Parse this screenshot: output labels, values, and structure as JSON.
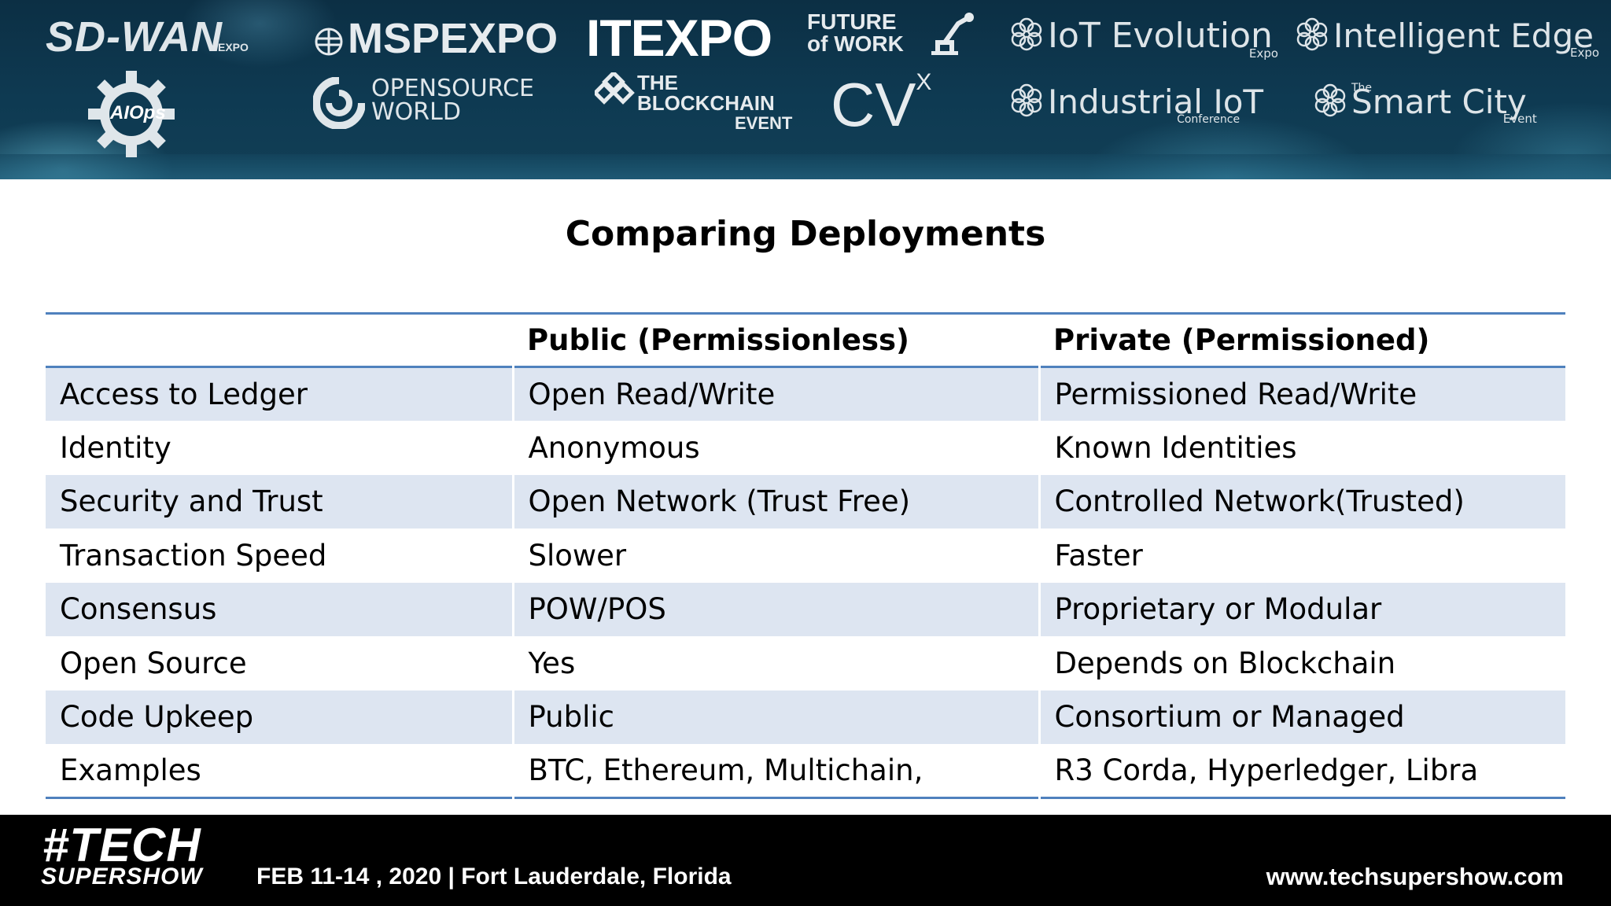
{
  "banner": {
    "logos": {
      "sdwan": "SD-WAN",
      "sdwan_sub": "EXPO",
      "mspexpo": "MSPEXPO",
      "itexpo": "ITEXPO",
      "future_line1": "FUTURE",
      "future_line2": "of WORK",
      "iot_evolution": "IoT Evolution",
      "iot_evolution_sub": "Expo",
      "intelligent_edge": "Intelligent Edge",
      "intelligent_edge_sub": "Expo",
      "aiops": "AIOps",
      "oss_line1": "OPENSOURCE",
      "oss_line2": "WORLD",
      "blockchain_line1": "THE",
      "blockchain_line2": "BLOCKCHAIN",
      "blockchain_line3": "EVENT",
      "cvx": "CV",
      "cvx_sup": "X",
      "industrial_iot": "Industrial IoT",
      "industrial_iot_sub": "Conference",
      "smart_city": "Smart City",
      "smart_city_pre": "The",
      "smart_city_sub": "Event"
    }
  },
  "slide": {
    "title": "Comparing Deployments",
    "table": {
      "headers": [
        "",
        "Public (Permissionless)",
        "Private (Permissioned)"
      ],
      "rows": [
        [
          "Access to Ledger",
          "Open Read/Write",
          "Permissioned Read/Write"
        ],
        [
          "Identity",
          "Anonymous",
          "Known Identities"
        ],
        [
          "Security and Trust",
          "Open Network (Trust Free)",
          "Controlled Network(Trusted)"
        ],
        [
          "Transaction Speed",
          "Slower",
          "Faster"
        ],
        [
          "Consensus",
          "POW/POS",
          "Proprietary or Modular"
        ],
        [
          "Open Source",
          "Yes",
          "Depends on Blockchain"
        ],
        [
          "Code Upkeep",
          "Public",
          "Consortium or Managed"
        ],
        [
          "Examples",
          "BTC, Ethereum, Multichain,",
          "R3 Corda, Hyperledger, Libra"
        ]
      ]
    }
  },
  "footer": {
    "brand_line1": "#TECH",
    "brand_line2": "SUPERSHOW",
    "date_location": "FEB 11-14 , 2020 | Fort Lauderdale, Florida",
    "website": "www.techsupershow.com"
  },
  "colors": {
    "banner": "#0e3a52",
    "table_rule": "#4f81bd",
    "row_band": "#dde5f1",
    "footer": "#000000"
  }
}
